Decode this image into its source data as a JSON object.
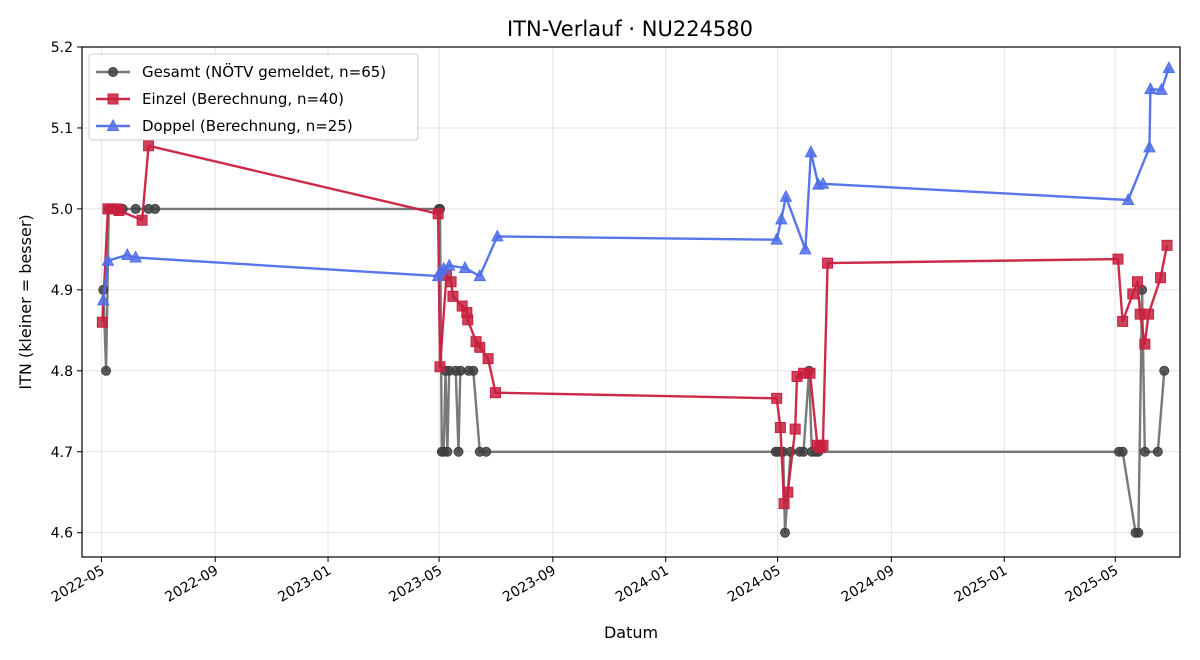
{
  "chart_data": {
    "type": "line",
    "title": "ITN-Verlauf · NU224580",
    "xlabel": "Datum",
    "ylabel": "ITN  (kleiner = besser)",
    "xlim": [
      "2022-04-10",
      "2025-07-10"
    ],
    "ylim": [
      4.57,
      5.2
    ],
    "x_ticks": [
      "2022-05",
      "2022-09",
      "2023-01",
      "2023-05",
      "2023-09",
      "2024-01",
      "2024-05",
      "2024-09",
      "2025-01",
      "2025-05"
    ],
    "y_ticks": [
      4.6,
      4.7,
      4.8,
      4.9,
      5.0,
      5.1,
      5.2
    ],
    "y_tick_labels": [
      "4.6",
      "4.7",
      "4.8",
      "4.9",
      "5.0",
      "5.1",
      "5.2"
    ],
    "grid": true,
    "legend_position": "top-left",
    "series": [
      {
        "name": "Gesamt (NÖTV gemeldet, n=65)",
        "color": "#404040",
        "marker": "circle",
        "points": [
          [
            "2022-05-03",
            4.9
          ],
          [
            "2022-05-06",
            4.8
          ],
          [
            "2022-05-09",
            5.0
          ],
          [
            "2022-05-13",
            5.0
          ],
          [
            "2022-05-17",
            5.0
          ],
          [
            "2022-05-24",
            5.0
          ],
          [
            "2022-06-07",
            5.0
          ],
          [
            "2022-06-21",
            5.0
          ],
          [
            "2022-06-28",
            5.0
          ],
          [
            "2023-05-01",
            5.0
          ],
          [
            "2023-05-02",
            5.0
          ],
          [
            "2023-05-04",
            4.7
          ],
          [
            "2023-05-06",
            4.7
          ],
          [
            "2023-05-08",
            4.8
          ],
          [
            "2023-05-10",
            4.7
          ],
          [
            "2023-05-12",
            4.8
          ],
          [
            "2023-05-19",
            4.8
          ],
          [
            "2023-05-22",
            4.7
          ],
          [
            "2023-05-24",
            4.8
          ],
          [
            "2023-06-02",
            4.8
          ],
          [
            "2023-06-07",
            4.8
          ],
          [
            "2023-06-14",
            4.7
          ],
          [
            "2023-06-21",
            4.7
          ],
          [
            "2024-04-29",
            4.7
          ],
          [
            "2024-05-01",
            4.7
          ],
          [
            "2024-05-04",
            4.7
          ],
          [
            "2024-05-07",
            4.7
          ],
          [
            "2024-05-09",
            4.6
          ],
          [
            "2024-05-15",
            4.7
          ],
          [
            "2024-05-25",
            4.7
          ],
          [
            "2024-05-29",
            4.7
          ],
          [
            "2024-06-04",
            4.8
          ],
          [
            "2024-06-07",
            4.7
          ],
          [
            "2024-06-11",
            4.7
          ],
          [
            "2024-06-14",
            4.7
          ],
          [
            "2025-05-05",
            4.7
          ],
          [
            "2025-05-09",
            4.7
          ],
          [
            "2025-05-23",
            4.6
          ],
          [
            "2025-05-26",
            4.6
          ],
          [
            "2025-05-30",
            4.9
          ],
          [
            "2025-06-02",
            4.7
          ],
          [
            "2025-06-16",
            4.7
          ],
          [
            "2025-06-23",
            4.8
          ]
        ]
      },
      {
        "name": "Einzel (Berechnung, n=40)",
        "color": "#c8203e",
        "marker": "square",
        "points": [
          [
            "2022-05-02",
            4.86
          ],
          [
            "2022-05-08",
            5.0
          ],
          [
            "2022-05-13",
            5.0
          ],
          [
            "2022-05-17",
            5.0
          ],
          [
            "2022-05-20",
            4.998
          ],
          [
            "2022-06-14",
            4.986
          ],
          [
            "2022-06-21",
            5.078
          ],
          [
            "2023-04-30",
            4.994
          ],
          [
            "2023-05-02",
            4.805
          ],
          [
            "2023-05-09",
            4.918
          ],
          [
            "2023-05-14",
            4.91
          ],
          [
            "2023-05-16",
            4.892
          ],
          [
            "2023-05-26",
            4.88
          ],
          [
            "2023-05-31",
            4.872
          ],
          [
            "2023-06-01",
            4.863
          ],
          [
            "2023-06-10",
            4.836
          ],
          [
            "2023-06-14",
            4.829
          ],
          [
            "2023-06-23",
            4.815
          ],
          [
            "2023-07-01",
            4.773
          ],
          [
            "2024-04-30",
            4.766
          ],
          [
            "2024-05-04",
            4.73
          ],
          [
            "2024-05-08",
            4.636
          ],
          [
            "2024-05-12",
            4.65
          ],
          [
            "2024-05-20",
            4.728
          ],
          [
            "2024-05-22",
            4.793
          ],
          [
            "2024-05-29",
            4.797
          ],
          [
            "2024-06-05",
            4.797
          ],
          [
            "2024-06-13",
            4.708
          ],
          [
            "2024-06-16",
            4.705
          ],
          [
            "2024-06-19",
            4.708
          ],
          [
            "2024-06-24",
            4.933
          ],
          [
            "2025-05-04",
            4.938
          ],
          [
            "2025-05-09",
            4.861
          ],
          [
            "2025-05-20",
            4.895
          ],
          [
            "2025-05-25",
            4.91
          ],
          [
            "2025-05-28",
            4.87
          ],
          [
            "2025-06-02",
            4.833
          ],
          [
            "2025-06-06",
            4.87
          ],
          [
            "2025-06-19",
            4.915
          ],
          [
            "2025-06-26",
            4.955
          ]
        ]
      },
      {
        "name": "Doppel (Berechnung, n=25)",
        "color": "#4f6fe8",
        "marker": "triangle",
        "points": [
          [
            "2022-05-03",
            4.887
          ],
          [
            "2022-05-08",
            4.936
          ],
          [
            "2022-05-29",
            4.943
          ],
          [
            "2022-06-07",
            4.94
          ],
          [
            "2023-04-30",
            4.917
          ],
          [
            "2023-05-02",
            4.922
          ],
          [
            "2023-05-06",
            4.926
          ],
          [
            "2023-05-12",
            4.93
          ],
          [
            "2023-05-29",
            4.927
          ],
          [
            "2023-06-14",
            4.917
          ],
          [
            "2023-07-03",
            4.966
          ],
          [
            "2024-04-30",
            4.962
          ],
          [
            "2024-05-05",
            4.987
          ],
          [
            "2024-05-10",
            5.015
          ],
          [
            "2024-05-31",
            4.95
          ],
          [
            "2024-06-06",
            5.07
          ],
          [
            "2024-06-14",
            5.03
          ],
          [
            "2024-06-19",
            5.031
          ],
          [
            "2025-05-15",
            5.011
          ],
          [
            "2025-06-07",
            5.076
          ],
          [
            "2025-06-08",
            5.148
          ],
          [
            "2025-06-20",
            5.147
          ],
          [
            "2025-06-28",
            5.174
          ]
        ]
      }
    ]
  }
}
